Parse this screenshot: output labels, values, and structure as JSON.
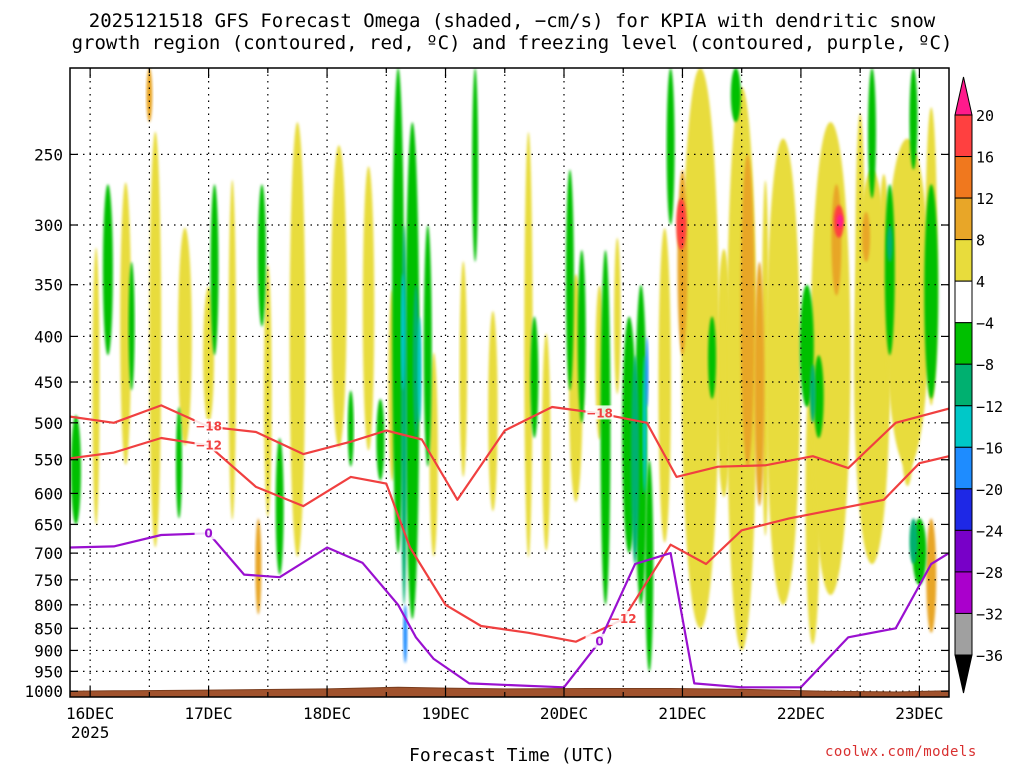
{
  "title_line1": "2025121518 GFS Forecast Omega (shaded, −cm/s) for KPIA with dendritic snow",
  "title_line2": "growth region (contoured, red, ºC) and freezing level (contoured, purple, ºC)",
  "credit": "coolwx.com/models",
  "chart_data": {
    "type": "time-height cross-section",
    "title": "2025121518 GFS Forecast Omega (shaded, −cm/s) for KPIA with dendritic snow growth region (contoured, red, ºC) and freezing level (contoured, purple, ºC)",
    "xlabel": "Forecast Time (UTC)",
    "ylabel": "",
    "x_ticks": [
      "16DEC",
      "17DEC",
      "18DEC",
      "19DEC",
      "20DEC",
      "21DEC",
      "22DEC",
      "23DEC"
    ],
    "x_year_label": "2025",
    "x_range_days": [
      15.83,
      23.25
    ],
    "y_ticks": [
      250,
      300,
      350,
      400,
      450,
      500,
      550,
      600,
      650,
      700,
      750,
      800,
      850,
      900,
      950,
      1000
    ],
    "y_range_hpa": [
      200,
      1015
    ],
    "grid": true,
    "colorbar": {
      "levels": [
        20,
        16,
        12,
        8,
        4,
        -4,
        -8,
        -12,
        -16,
        -20,
        -24,
        -28,
        -32,
        -36
      ],
      "labels": [
        "20",
        "16",
        "12",
        "8",
        "4",
        "−4",
        "−8",
        "−12",
        "−16",
        "−20",
        "−24",
        "−28",
        "−32",
        "−36"
      ],
      "colors": [
        "#ff1a8c",
        "#ff4040",
        "#f0781e",
        "#e8a628",
        "#e8dc3c",
        "#ffffff",
        "#00c000",
        "#00b070",
        "#00c8c8",
        "#1e8cff",
        "#1e28e6",
        "#7800c8",
        "#aa00cc",
        "#a0a0a0",
        "#000000"
      ]
    },
    "contours": [
      {
        "label": "−18",
        "color": "#f04040",
        "times": [
          15.83,
          16.2,
          16.6,
          17.0,
          17.4,
          17.8,
          18.2,
          18.5,
          18.8,
          19.1,
          19.5,
          19.9,
          20.3,
          20.7,
          20.95,
          21.3,
          21.7,
          22.1,
          22.4,
          22.8,
          23.25
        ],
        "hpa": [
          492,
          500,
          478,
          505,
          512,
          542,
          525,
          510,
          522,
          610,
          510,
          480,
          488,
          500,
          575,
          560,
          558,
          545,
          562,
          500,
          482
        ]
      },
      {
        "label": "−12",
        "color": "#f04040",
        "times": [
          15.83,
          16.2,
          16.6,
          17.0,
          17.4,
          17.8,
          18.2,
          18.5,
          18.7,
          19.0,
          19.3,
          19.7,
          20.1,
          20.5,
          20.9,
          21.2,
          21.5,
          21.9,
          22.3,
          22.7,
          23.0,
          23.25
        ],
        "hpa": [
          548,
          540,
          520,
          530,
          590,
          620,
          575,
          585,
          690,
          800,
          845,
          860,
          880,
          830,
          685,
          720,
          660,
          640,
          625,
          610,
          555,
          545
        ]
      },
      {
        "label": "0",
        "color": "#9a10d0",
        "times": [
          15.83,
          16.2,
          16.6,
          17.0,
          17.3,
          17.6,
          18.0,
          18.3,
          18.6,
          18.75,
          18.9,
          19.2,
          19.6,
          20.0,
          20.3,
          20.6,
          20.9,
          21.1,
          21.5,
          22.0,
          22.4,
          22.8,
          23.1,
          23.25
        ],
        "hpa": [
          690,
          688,
          668,
          665,
          740,
          745,
          690,
          718,
          800,
          870,
          920,
          980,
          985,
          990,
          880,
          720,
          700,
          980,
          990,
          990,
          870,
          850,
          720,
          700
        ]
      }
    ]
  }
}
